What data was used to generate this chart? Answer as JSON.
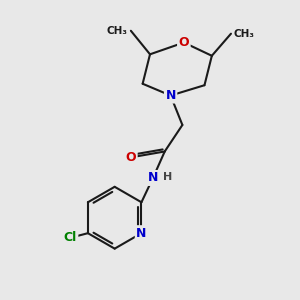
{
  "background_color": "#e8e8e8",
  "bond_color": "#1a1a1a",
  "bond_width": 1.5,
  "atom_colors": {
    "O": "#cc0000",
    "N": "#0000cc",
    "Cl": "#008000",
    "C": "#1a1a1a",
    "H": "#444444"
  },
  "figsize": [
    3.0,
    3.0
  ],
  "dpi": 100
}
